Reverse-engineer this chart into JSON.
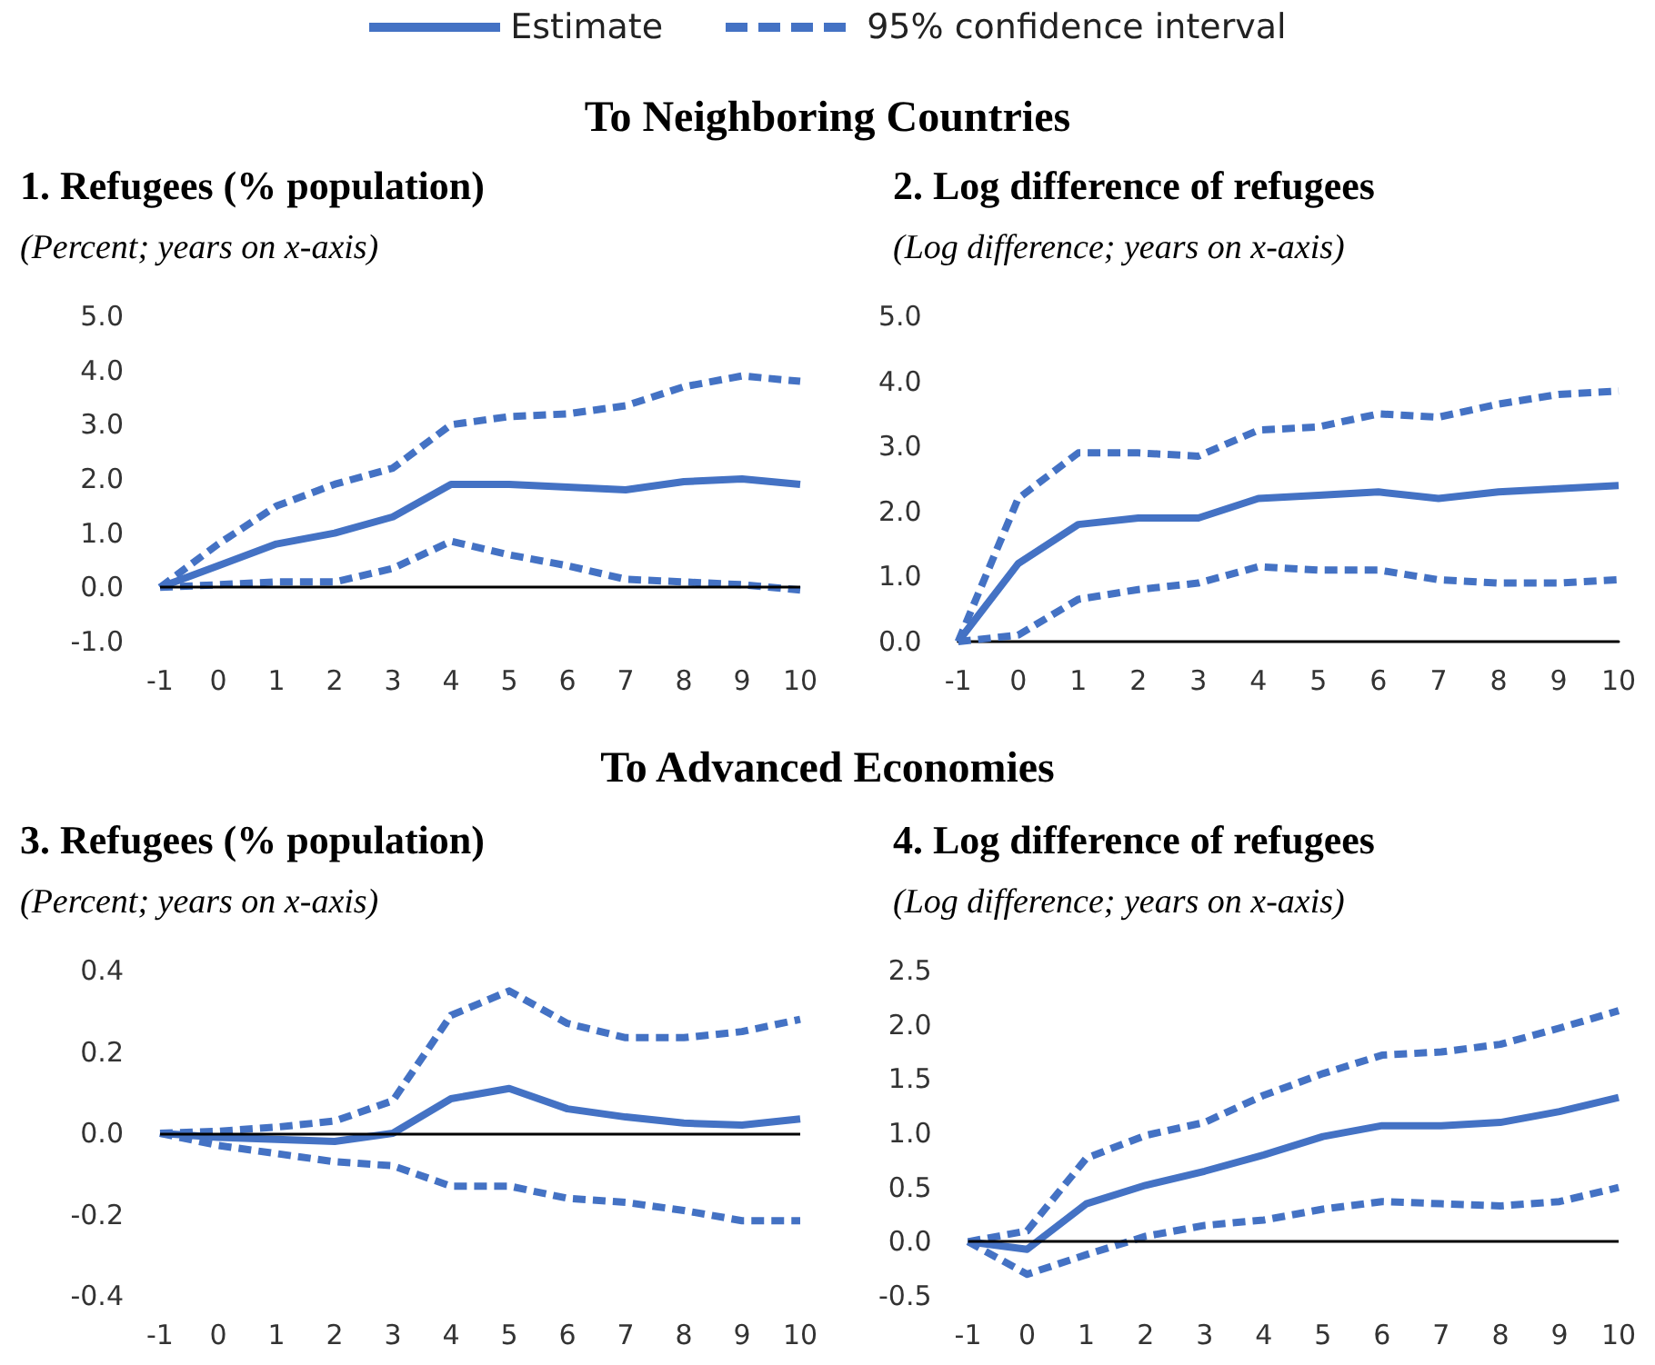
{
  "chart_data": [
    {
      "type": "line",
      "title": "1. Refugees (% population)",
      "subtitle": "(Percent; years on x-axis)",
      "annotations": [
        "To Neighboring Countries"
      ],
      "legend": "top",
      "grid": false,
      "marker": "none",
      "categories": [
        "-1",
        "0",
        "1",
        "2",
        "3",
        "4",
        "5",
        "6",
        "7",
        "8",
        "9",
        "10"
      ],
      "ref_lines": [
        {
          "axis": "y",
          "value": 0,
          "color": "#000000"
        }
      ],
      "ylim": [
        -1,
        5
      ],
      "yticks": [
        {
          "value": -1,
          "label": "-1.0"
        },
        {
          "value": 0,
          "label": "0.0"
        },
        {
          "value": 1,
          "label": "1.0"
        },
        {
          "value": 2,
          "label": "2.0"
        },
        {
          "value": 3,
          "label": "3.0"
        },
        {
          "value": 4,
          "label": "4.0"
        },
        {
          "value": 5,
          "label": "5.0"
        }
      ],
      "series": [
        {
          "name": "Estimate",
          "color": "#4472c4",
          "line_style": "solid",
          "values": [
            0,
            0.4,
            0.8,
            1.0,
            1.3,
            1.9,
            1.9,
            1.85,
            1.8,
            1.95,
            2.0,
            1.9
          ]
        },
        {
          "name": "95% confidence interval",
          "color": "#4472c4",
          "line_style": "dashed",
          "values": [
            0,
            0.8,
            1.5,
            1.9,
            2.2,
            3.0,
            3.15,
            3.2,
            3.35,
            3.7,
            3.9,
            3.8
          ]
        },
        {
          "color": "#4472c4",
          "line_style": "dashed",
          "values": [
            0,
            0.05,
            0.1,
            0.1,
            0.35,
            0.85,
            0.6,
            0.4,
            0.15,
            0.1,
            0.05,
            -0.05
          ]
        }
      ]
    },
    {
      "type": "line",
      "title": "2. Log difference of refugees",
      "subtitle": "(Log difference; years on x-axis)",
      "grid": false,
      "marker": "none",
      "categories": [
        "-1",
        "0",
        "1",
        "2",
        "3",
        "4",
        "5",
        "6",
        "7",
        "8",
        "9",
        "10"
      ],
      "ylim": [
        0,
        5
      ],
      "yticks": [
        {
          "value": 0,
          "label": "0.0"
        },
        {
          "value": 1,
          "label": "1.0"
        },
        {
          "value": 2,
          "label": "2.0"
        },
        {
          "value": 3,
          "label": "3.0"
        },
        {
          "value": 4,
          "label": "4.0"
        },
        {
          "value": 5,
          "label": "5.0"
        }
      ],
      "series": [
        {
          "color": "#4472c4",
          "line_style": "solid",
          "values": [
            0,
            1.2,
            1.8,
            1.9,
            1.9,
            2.2,
            2.25,
            2.3,
            2.2,
            2.3,
            2.35,
            2.4
          ]
        },
        {
          "color": "#4472c4",
          "line_style": "dashed",
          "values": [
            0,
            2.2,
            2.9,
            2.9,
            2.85,
            3.25,
            3.3,
            3.5,
            3.45,
            3.65,
            3.8,
            3.85
          ]
        },
        {
          "color": "#4472c4",
          "line_style": "dashed",
          "values": [
            0,
            0.1,
            0.65,
            0.8,
            0.9,
            1.15,
            1.1,
            1.1,
            0.95,
            0.9,
            0.9,
            0.95
          ]
        }
      ]
    },
    {
      "type": "line",
      "title": "3. Refugees (% population)",
      "subtitle": "(Percent; years on x-axis)",
      "annotations": [
        "To Advanced Economies"
      ],
      "grid": false,
      "marker": "none",
      "categories": [
        "-1",
        "0",
        "1",
        "2",
        "3",
        "4",
        "5",
        "6",
        "7",
        "8",
        "9",
        "10"
      ],
      "ref_lines": [
        {
          "axis": "y",
          "value": 0,
          "color": "#000000"
        }
      ],
      "ylim": [
        -0.4,
        0.4
      ],
      "yticks": [
        -0.4,
        -0.2,
        {
          "value": 0,
          "label": "0.0"
        },
        0.2,
        0.4
      ],
      "series": [
        {
          "color": "#4472c4",
          "line_style": "solid",
          "values": [
            0,
            -0.01,
            -0.015,
            -0.02,
            0,
            0.085,
            0.11,
            0.06,
            0.04,
            0.025,
            0.02,
            0.035
          ]
        },
        {
          "color": "#4472c4",
          "line_style": "dashed",
          "values": [
            0,
            0.005,
            0.015,
            0.03,
            0.08,
            0.29,
            0.35,
            0.27,
            0.235,
            0.235,
            0.25,
            0.28
          ]
        },
        {
          "color": "#4472c4",
          "line_style": "dashed",
          "values": [
            0,
            -0.03,
            -0.05,
            -0.07,
            -0.08,
            -0.13,
            -0.13,
            -0.16,
            -0.17,
            -0.19,
            -0.215,
            -0.215
          ]
        }
      ]
    },
    {
      "type": "line",
      "title": "4. Log difference of refugees",
      "subtitle": "(Log difference; years on x-axis)",
      "grid": false,
      "marker": "none",
      "categories": [
        "-1",
        "0",
        "1",
        "2",
        "3",
        "4",
        "5",
        "6",
        "7",
        "8",
        "9",
        "10"
      ],
      "ref_lines": [
        {
          "axis": "y",
          "value": 0,
          "color": "#000000"
        }
      ],
      "ylim": [
        -0.5,
        2.5
      ],
      "yticks": [
        -0.5,
        {
          "value": 0,
          "label": "0.0"
        },
        0.5,
        {
          "value": 1,
          "label": "1.0"
        },
        1.5,
        {
          "value": 2,
          "label": "2.0"
        },
        2.5
      ],
      "series": [
        {
          "color": "#4472c4",
          "line_style": "solid",
          "values": [
            0,
            -0.07,
            0.35,
            0.52,
            0.65,
            0.8,
            0.97,
            1.07,
            1.07,
            1.1,
            1.2,
            1.33
          ]
        },
        {
          "color": "#4472c4",
          "line_style": "dashed",
          "values": [
            0,
            0.1,
            0.77,
            0.98,
            1.1,
            1.35,
            1.55,
            1.72,
            1.75,
            1.82,
            1.97,
            2.13
          ]
        },
        {
          "color": "#4472c4",
          "line_style": "dashed",
          "values": [
            0,
            -0.3,
            -0.12,
            0.05,
            0.15,
            0.2,
            0.3,
            0.37,
            0.35,
            0.33,
            0.37,
            0.5
          ]
        }
      ]
    }
  ]
}
